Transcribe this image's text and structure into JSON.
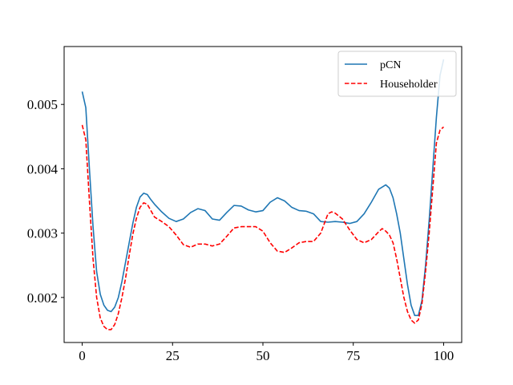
{
  "chart_data": {
    "type": "line",
    "title": "",
    "xlabel": "",
    "ylabel": "",
    "xlim": [
      -5,
      105
    ],
    "ylim": [
      0.0013,
      0.0059
    ],
    "x_ticks": [
      0,
      25,
      50,
      75,
      100
    ],
    "x_tick_labels": [
      "0",
      "25",
      "50",
      "75",
      "100"
    ],
    "y_ticks": [
      0.002,
      0.003,
      0.004,
      0.005
    ],
    "y_tick_labels": [
      "0.002",
      "0.003",
      "0.004",
      "0.005"
    ],
    "grid": false,
    "legend": {
      "position": "top-right"
    },
    "series": [
      {
        "name": "pCN",
        "color": "#1f77b4",
        "linestyle": "solid",
        "points": [
          [
            0,
            0.0052
          ],
          [
            1,
            0.00495
          ],
          [
            2,
            0.004
          ],
          [
            3,
            0.0031
          ],
          [
            4,
            0.0024
          ],
          [
            5,
            0.00205
          ],
          [
            6,
            0.00188
          ],
          [
            7,
            0.0018
          ],
          [
            8,
            0.00178
          ],
          [
            9,
            0.00185
          ],
          [
            10,
            0.002
          ],
          [
            11,
            0.00225
          ],
          [
            12,
            0.00255
          ],
          [
            13,
            0.00285
          ],
          [
            14,
            0.00315
          ],
          [
            15,
            0.0034
          ],
          [
            16,
            0.00356
          ],
          [
            17,
            0.00362
          ],
          [
            18,
            0.0036
          ],
          [
            19,
            0.00352
          ],
          [
            20,
            0.00345
          ],
          [
            22,
            0.00333
          ],
          [
            24,
            0.00323
          ],
          [
            26,
            0.00318
          ],
          [
            28,
            0.00322
          ],
          [
            30,
            0.00332
          ],
          [
            32,
            0.00338
          ],
          [
            34,
            0.00335
          ],
          [
            36,
            0.00322
          ],
          [
            38,
            0.0032
          ],
          [
            40,
            0.00332
          ],
          [
            42,
            0.00343
          ],
          [
            44,
            0.00342
          ],
          [
            46,
            0.00336
          ],
          [
            48,
            0.00333
          ],
          [
            50,
            0.00335
          ],
          [
            52,
            0.00348
          ],
          [
            54,
            0.00355
          ],
          [
            56,
            0.0035
          ],
          [
            58,
            0.0034
          ],
          [
            60,
            0.00335
          ],
          [
            62,
            0.00334
          ],
          [
            64,
            0.0033
          ],
          [
            66,
            0.00318
          ],
          [
            68,
            0.00317
          ],
          [
            70,
            0.00318
          ],
          [
            72,
            0.00317
          ],
          [
            74,
            0.00315
          ],
          [
            76,
            0.00318
          ],
          [
            78,
            0.0033
          ],
          [
            80,
            0.00348
          ],
          [
            82,
            0.00368
          ],
          [
            84,
            0.00375
          ],
          [
            85,
            0.0037
          ],
          [
            86,
            0.00355
          ],
          [
            87,
            0.0033
          ],
          [
            88,
            0.003
          ],
          [
            89,
            0.0026
          ],
          [
            90,
            0.0022
          ],
          [
            91,
            0.00188
          ],
          [
            92,
            0.00172
          ],
          [
            93,
            0.00172
          ],
          [
            94,
            0.00195
          ],
          [
            95,
            0.0025
          ],
          [
            96,
            0.0032
          ],
          [
            97,
            0.004
          ],
          [
            98,
            0.0048
          ],
          [
            99,
            0.00545
          ],
          [
            100,
            0.0057
          ]
        ]
      },
      {
        "name": "Householder",
        "color": "#ff0000",
        "linestyle": "dashed",
        "points": [
          [
            0,
            0.00468
          ],
          [
            1,
            0.00445
          ],
          [
            2,
            0.0035
          ],
          [
            3,
            0.0026
          ],
          [
            4,
            0.002
          ],
          [
            5,
            0.00168
          ],
          [
            6,
            0.00155
          ],
          [
            7,
            0.0015
          ],
          [
            8,
            0.0015
          ],
          [
            9,
            0.00158
          ],
          [
            10,
            0.00175
          ],
          [
            11,
            0.002
          ],
          [
            12,
            0.0023
          ],
          [
            13,
            0.00265
          ],
          [
            14,
            0.00298
          ],
          [
            15,
            0.00323
          ],
          [
            16,
            0.0034
          ],
          [
            17,
            0.00347
          ],
          [
            18,
            0.00345
          ],
          [
            19,
            0.00335
          ],
          [
            20,
            0.00325
          ],
          [
            22,
            0.00318
          ],
          [
            24,
            0.0031
          ],
          [
            26,
            0.00297
          ],
          [
            28,
            0.00282
          ],
          [
            30,
            0.00278
          ],
          [
            32,
            0.00283
          ],
          [
            34,
            0.00283
          ],
          [
            36,
            0.0028
          ],
          [
            38,
            0.00283
          ],
          [
            40,
            0.00295
          ],
          [
            42,
            0.00308
          ],
          [
            44,
            0.0031
          ],
          [
            46,
            0.0031
          ],
          [
            48,
            0.0031
          ],
          [
            50,
            0.00303
          ],
          [
            52,
            0.00285
          ],
          [
            54,
            0.00272
          ],
          [
            56,
            0.0027
          ],
          [
            58,
            0.00277
          ],
          [
            60,
            0.00285
          ],
          [
            62,
            0.00287
          ],
          [
            64,
            0.00287
          ],
          [
            66,
            0.003
          ],
          [
            68,
            0.0033
          ],
          [
            69,
            0.00333
          ],
          [
            70,
            0.00331
          ],
          [
            72,
            0.00322
          ],
          [
            74,
            0.00305
          ],
          [
            76,
            0.0029
          ],
          [
            78,
            0.00285
          ],
          [
            80,
            0.0029
          ],
          [
            82,
            0.00302
          ],
          [
            83,
            0.00307
          ],
          [
            84,
            0.00303
          ],
          [
            85,
            0.00297
          ],
          [
            86,
            0.00285
          ],
          [
            87,
            0.0026
          ],
          [
            88,
            0.0023
          ],
          [
            89,
            0.002
          ],
          [
            90,
            0.00178
          ],
          [
            91,
            0.00165
          ],
          [
            92,
            0.0016
          ],
          [
            93,
            0.00165
          ],
          [
            94,
            0.0019
          ],
          [
            95,
            0.0024
          ],
          [
            96,
            0.003
          ],
          [
            97,
            0.0037
          ],
          [
            98,
            0.0044
          ],
          [
            99,
            0.0046
          ],
          [
            100,
            0.00465
          ]
        ]
      }
    ]
  }
}
